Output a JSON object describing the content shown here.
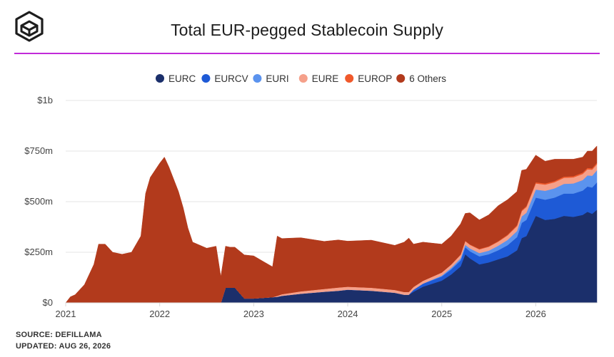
{
  "header": {
    "title": "Total EUR-pegged Stablecoin Supply"
  },
  "footer": {
    "source": "SOURCE: DEFILLAMA",
    "updated": "UPDATED: AUG 26, 2026"
  },
  "colors": {
    "rule": "#c12ad9",
    "grid": "#e6e6e6",
    "axis": "#d9d9d9",
    "text": "#444444"
  },
  "chart_data": {
    "type": "area",
    "stacked": true,
    "title": "Total EUR-pegged Stablecoin Supply",
    "xlabel": "",
    "ylabel": "",
    "xlim": [
      2021.0,
      2026.65
    ],
    "ylim": [
      0,
      1000
    ],
    "units": "millions USD",
    "grid": "horizontal",
    "legend_position": "top-center",
    "x_ticks": [
      {
        "value": 2021,
        "label": "2021"
      },
      {
        "value": 2022,
        "label": "2022"
      },
      {
        "value": 2023,
        "label": "2023"
      },
      {
        "value": 2024,
        "label": "2024"
      },
      {
        "value": 2025,
        "label": "2025"
      },
      {
        "value": 2026,
        "label": "2026"
      }
    ],
    "y_ticks": [
      {
        "value": 0,
        "label": "$0"
      },
      {
        "value": 250,
        "label": "$250m"
      },
      {
        "value": 500,
        "label": "$500m"
      },
      {
        "value": 750,
        "label": "$750m"
      },
      {
        "value": 1000,
        "label": "$1b"
      }
    ],
    "x": [
      2021.0,
      2021.05,
      2021.1,
      2021.2,
      2021.3,
      2021.35,
      2021.42,
      2021.5,
      2021.6,
      2021.7,
      2021.8,
      2021.85,
      2021.9,
      2022.0,
      2022.05,
      2022.1,
      2022.15,
      2022.2,
      2022.25,
      2022.3,
      2022.35,
      2022.4,
      2022.5,
      2022.6,
      2022.65,
      2022.7,
      2022.75,
      2022.8,
      2022.9,
      2023.0,
      2023.1,
      2023.2,
      2023.25,
      2023.3,
      2023.5,
      2023.75,
      2023.9,
      2024.0,
      2024.25,
      2024.5,
      2024.6,
      2024.65,
      2024.7,
      2024.8,
      2025.0,
      2025.1,
      2025.2,
      2025.25,
      2025.3,
      2025.4,
      2025.5,
      2025.6,
      2025.7,
      2025.8,
      2025.85,
      2025.9,
      2026.0,
      2026.1,
      2026.2,
      2026.3,
      2026.4,
      2026.5,
      2026.55,
      2026.6,
      2026.65
    ],
    "series": [
      {
        "name": "EURC",
        "color": "#1b2f6b",
        "values": [
          0,
          0,
          0,
          0,
          0,
          0,
          0,
          0,
          0,
          0,
          0,
          0,
          0,
          0,
          0,
          0,
          0,
          0,
          0,
          0,
          0,
          0,
          0,
          0,
          0,
          75,
          75,
          75,
          22,
          22,
          25,
          28,
          30,
          35,
          45,
          55,
          60,
          65,
          60,
          50,
          40,
          40,
          55,
          80,
          110,
          140,
          180,
          240,
          220,
          190,
          200,
          215,
          230,
          260,
          320,
          330,
          430,
          410,
          415,
          430,
          425,
          435,
          450,
          440,
          460
        ]
      },
      {
        "name": "EURCV",
        "color": "#1e5ad6",
        "values": [
          0,
          0,
          0,
          0,
          0,
          0,
          0,
          0,
          0,
          0,
          0,
          0,
          0,
          0,
          0,
          0,
          0,
          0,
          0,
          0,
          0,
          0,
          0,
          0,
          0,
          0,
          0,
          0,
          0,
          0,
          0,
          0,
          0,
          0,
          0,
          0,
          0,
          0,
          0,
          0,
          0,
          0,
          10,
          15,
          20,
          25,
          30,
          35,
          35,
          40,
          40,
          45,
          55,
          65,
          75,
          80,
          90,
          100,
          105,
          110,
          115,
          120,
          125,
          130,
          135
        ]
      },
      {
        "name": "EURI",
        "color": "#5b93ee",
        "values": [
          0,
          0,
          0,
          0,
          0,
          0,
          0,
          0,
          0,
          0,
          0,
          0,
          0,
          0,
          0,
          0,
          0,
          0,
          0,
          0,
          0,
          0,
          0,
          0,
          0,
          0,
          0,
          0,
          0,
          0,
          0,
          0,
          0,
          0,
          0,
          0,
          0,
          0,
          0,
          0,
          0,
          0,
          0,
          0,
          5,
          8,
          10,
          12,
          14,
          16,
          18,
          22,
          26,
          30,
          32,
          35,
          40,
          44,
          46,
          48,
          50,
          52,
          55,
          58,
          60
        ]
      },
      {
        "name": "EURE",
        "color": "#f5a08a",
        "values": [
          0,
          0,
          0,
          0,
          0,
          0,
          0,
          0,
          0,
          0,
          0,
          0,
          0,
          0,
          0,
          0,
          0,
          0,
          0,
          0,
          0,
          0,
          0,
          0,
          0,
          0,
          0,
          0,
          0,
          0,
          0,
          0,
          5,
          8,
          12,
          14,
          16,
          15,
          15,
          14,
          14,
          14,
          14,
          14,
          15,
          16,
          17,
          18,
          18,
          18,
          19,
          20,
          22,
          24,
          26,
          28,
          30,
          30,
          30,
          30,
          30,
          30,
          30,
          30,
          30
        ]
      },
      {
        "name": "EUROP",
        "color": "#f0592b",
        "values": [
          0,
          0,
          0,
          0,
          0,
          0,
          0,
          0,
          0,
          0,
          0,
          0,
          0,
          0,
          0,
          0,
          0,
          0,
          0,
          0,
          0,
          0,
          0,
          0,
          0,
          0,
          0,
          0,
          0,
          0,
          0,
          0,
          0,
          0,
          0,
          0,
          0,
          0,
          0,
          0,
          0,
          0,
          0,
          0,
          0,
          0,
          2,
          2,
          2,
          3,
          3,
          3,
          4,
          5,
          5,
          5,
          6,
          6,
          6,
          6,
          6,
          7,
          7,
          7,
          7
        ]
      },
      {
        "name": "6 Others",
        "color": "#b23a1c",
        "values": [
          0,
          30,
          40,
          90,
          190,
          290,
          290,
          250,
          240,
          250,
          330,
          540,
          620,
          690,
          720,
          670,
          610,
          550,
          470,
          370,
          300,
          290,
          270,
          280,
          130,
          205,
          200,
          200,
          215,
          210,
          180,
          150,
          295,
          275,
          265,
          235,
          235,
          225,
          235,
          220,
          246,
          266,
          211,
          191,
          140,
          141,
          151,
          135,
          156,
          143,
          155,
          175,
          173,
          166,
          197,
          182,
          134,
          110,
          108,
          86,
          84,
          76,
          83,
          85,
          83
        ]
      }
    ]
  }
}
